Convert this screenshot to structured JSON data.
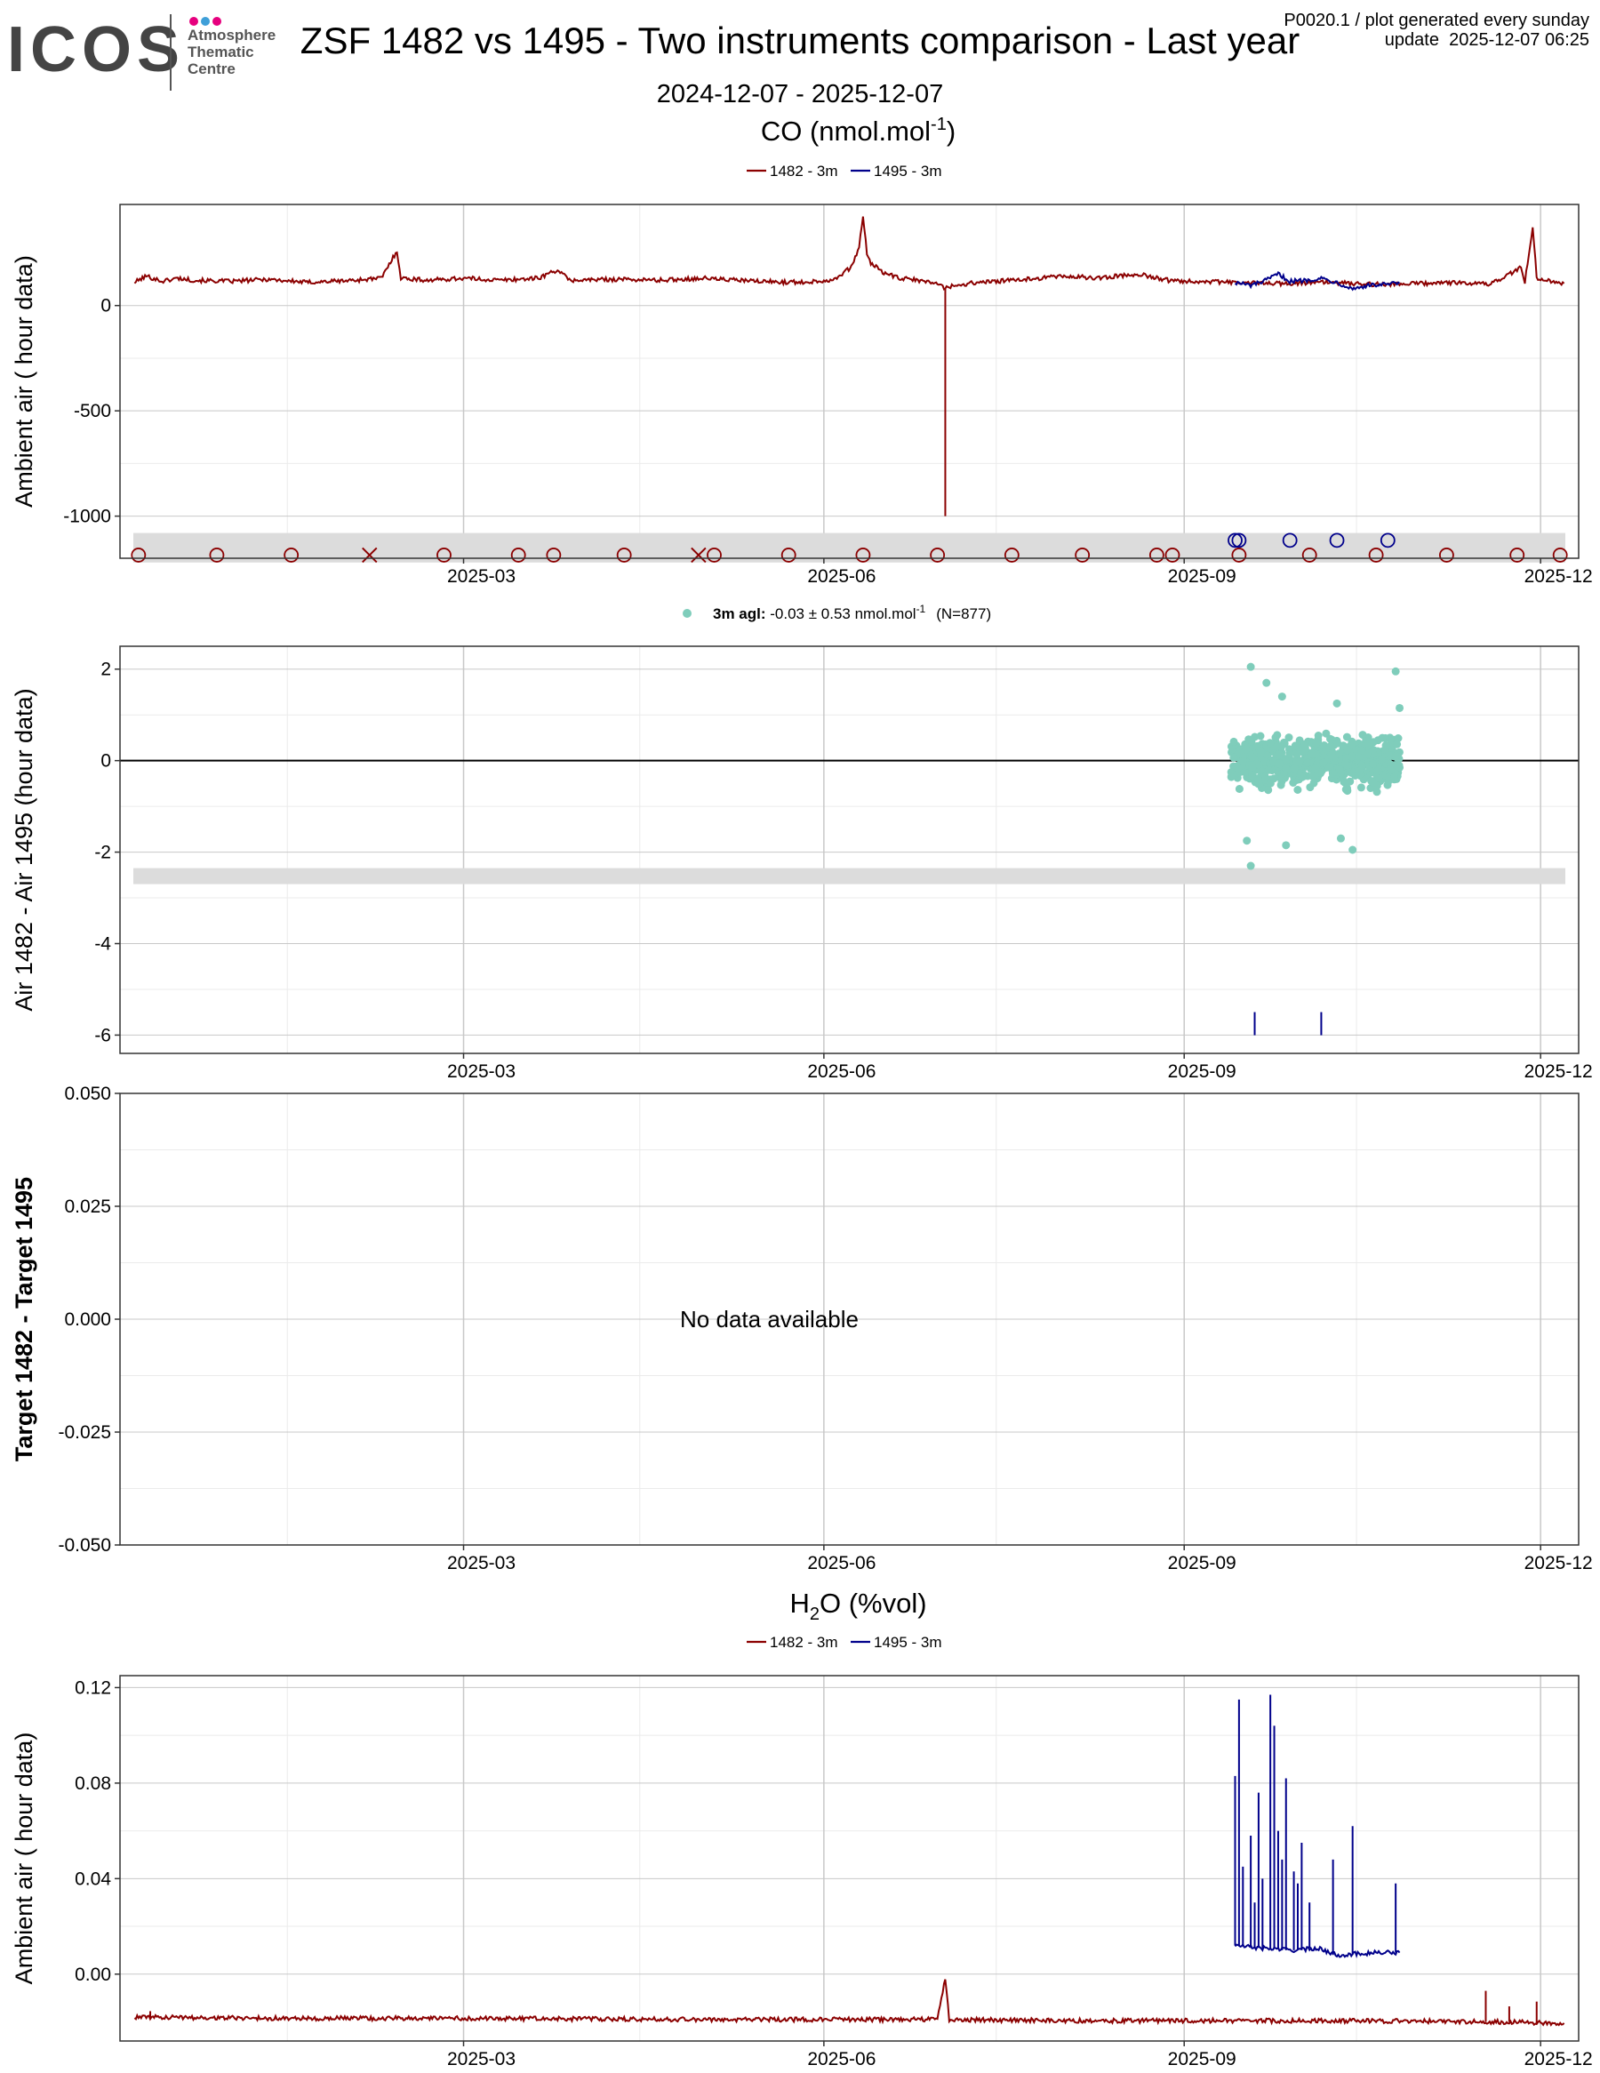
{
  "logo": {
    "wordmark": "ICOS",
    "text_lines": [
      "Atmosphere",
      "Thematic",
      "Centre"
    ],
    "dot_colors": [
      "#e6007e",
      "#3f9fd8",
      "#e6007e"
    ]
  },
  "header": {
    "title": "ZSF 1482 vs 1495 - Two instruments comparison - Last year",
    "info_line1": "P0020.1 / plot generated every sunday",
    "info_line2": "update  2025-12-07 06:25",
    "date_range": "2024-12-07 - 2025-12-07"
  },
  "colors": {
    "series_1482": "#8b0000",
    "series_1495": "#00008b",
    "diff_points": "#7fcdbb",
    "grid_major": "#c8c8c8",
    "grid_minor": "#ebebeb",
    "flag_band": "#dcdcdc"
  },
  "chart_data": [
    {
      "id": "co-ambient",
      "type": "line",
      "section_title": "CO (nmol.mol",
      "section_title_sup": "-1",
      "section_title_end": ")",
      "legend": [
        {
          "name": "1482 - 3m",
          "color": "#8b0000"
        },
        {
          "name": "1495 - 3m",
          "color": "#00008b"
        }
      ],
      "ylabel": "Ambient air ( hour data)",
      "ylim": [
        -1200,
        480
      ],
      "yticks": [
        0,
        -500,
        -1000
      ],
      "ytick_labels": [
        "0",
        "-500",
        "-1000"
      ],
      "xlim": [
        "2024-12-07",
        "2025-12-07"
      ],
      "xticks": [
        "2025-03-01",
        "2025-06-01",
        "2025-09-01",
        "2025-12-01"
      ],
      "xtick_labels": [
        "2025-03",
        "2025-06",
        "2025-09",
        "2025-12"
      ],
      "grid": true,
      "flag_band": [
        -1220,
        -1080
      ],
      "series": [
        {
          "name": "1482 - 3m",
          "color": "#8b0000",
          "points": [
            [
              "2024-12-07",
              110
            ],
            [
              "2024-12-10",
              140
            ],
            [
              "2024-12-14",
              115
            ],
            [
              "2024-12-18",
              130
            ],
            [
              "2024-12-22",
              120
            ],
            [
              "2025-01-01",
              115
            ],
            [
              "2025-01-10",
              125
            ],
            [
              "2025-01-20",
              110
            ],
            [
              "2025-02-01",
              120
            ],
            [
              "2025-02-08",
              130
            ],
            [
              "2025-02-12",
              260
            ],
            [
              "2025-02-13",
              130
            ],
            [
              "2025-02-20",
              120
            ],
            [
              "2025-03-01",
              130
            ],
            [
              "2025-03-10",
              120
            ],
            [
              "2025-03-20",
              130
            ],
            [
              "2025-03-25",
              170
            ],
            [
              "2025-03-28",
              120
            ],
            [
              "2025-04-10",
              125
            ],
            [
              "2025-04-20",
              120
            ],
            [
              "2025-05-01",
              130
            ],
            [
              "2025-05-15",
              115
            ],
            [
              "2025-05-25",
              110
            ],
            [
              "2025-06-03",
              120
            ],
            [
              "2025-06-08",
              180
            ],
            [
              "2025-06-10",
              280
            ],
            [
              "2025-06-11",
              420
            ],
            [
              "2025-06-12",
              250
            ],
            [
              "2025-06-13",
              200
            ],
            [
              "2025-06-16",
              160
            ],
            [
              "2025-06-20",
              130
            ],
            [
              "2025-06-25",
              120
            ],
            [
              "2025-07-01",
              100
            ],
            [
              "2025-07-02",
              80
            ],
            [
              "2025-07-03",
              90
            ],
            [
              "2025-07-10",
              110
            ],
            [
              "2025-07-20",
              120
            ],
            [
              "2025-08-01",
              140
            ],
            [
              "2025-08-10",
              130
            ],
            [
              "2025-08-20",
              150
            ],
            [
              "2025-08-28",
              120
            ],
            [
              "2025-09-05",
              115
            ],
            [
              "2025-09-12",
              110
            ],
            [
              "2025-09-25",
              105
            ],
            [
              "2025-10-08",
              110
            ],
            [
              "2025-10-20",
              100
            ],
            [
              "2025-11-01",
              105
            ],
            [
              "2025-11-10",
              110
            ],
            [
              "2025-11-18",
              100
            ],
            [
              "2025-11-22",
              140
            ],
            [
              "2025-11-26",
              180
            ],
            [
              "2025-11-27",
              110
            ],
            [
              "2025-11-29",
              380
            ],
            [
              "2025-11-30",
              130
            ],
            [
              "2025-12-07",
              105
            ]
          ],
          "spikes": [
            [
              "2025-07-02",
              -1000
            ]
          ]
        },
        {
          "name": "1495 - 3m",
          "color": "#00008b",
          "points": [
            [
              "2025-09-14",
              110
            ],
            [
              "2025-09-18",
              95
            ],
            [
              "2025-09-22",
              120
            ],
            [
              "2025-09-25",
              150
            ],
            [
              "2025-09-28",
              115
            ],
            [
              "2025-10-02",
              120
            ],
            [
              "2025-10-06",
              130
            ],
            [
              "2025-10-10",
              110
            ],
            [
              "2025-10-14",
              80
            ],
            [
              "2025-10-18",
              95
            ],
            [
              "2025-10-22",
              100
            ],
            [
              "2025-10-26",
              105
            ]
          ]
        }
      ],
      "flags": [
        {
          "date": "2024-12-08",
          "y": -1185,
          "marker": "circle",
          "series": "1482 - 3m"
        },
        {
          "date": "2024-12-28",
          "y": -1185,
          "marker": "circle",
          "series": "1482 - 3m"
        },
        {
          "date": "2025-01-16",
          "y": -1185,
          "marker": "circle",
          "series": "1482 - 3m"
        },
        {
          "date": "2025-02-05",
          "y": -1185,
          "marker": "x",
          "series": "1482 - 3m"
        },
        {
          "date": "2025-02-24",
          "y": -1185,
          "marker": "circle",
          "series": "1482 - 3m"
        },
        {
          "date": "2025-03-15",
          "y": -1185,
          "marker": "circle",
          "series": "1482 - 3m"
        },
        {
          "date": "2025-03-24",
          "y": -1185,
          "marker": "circle",
          "series": "1482 - 3m"
        },
        {
          "date": "2025-04-11",
          "y": -1185,
          "marker": "circle",
          "series": "1482 - 3m"
        },
        {
          "date": "2025-04-30",
          "y": -1185,
          "marker": "x",
          "series": "1482 - 3m"
        },
        {
          "date": "2025-05-04",
          "y": -1185,
          "marker": "circle",
          "series": "1482 - 3m"
        },
        {
          "date": "2025-05-23",
          "y": -1185,
          "marker": "circle",
          "series": "1482 - 3m"
        },
        {
          "date": "2025-06-11",
          "y": -1185,
          "marker": "circle",
          "series": "1482 - 3m"
        },
        {
          "date": "2025-06-30",
          "y": -1185,
          "marker": "circle",
          "series": "1482 - 3m"
        },
        {
          "date": "2025-07-19",
          "y": -1185,
          "marker": "circle",
          "series": "1482 - 3m"
        },
        {
          "date": "2025-08-06",
          "y": -1185,
          "marker": "circle",
          "series": "1482 - 3m"
        },
        {
          "date": "2025-08-25",
          "y": -1185,
          "marker": "circle",
          "series": "1482 - 3m"
        },
        {
          "date": "2025-08-29",
          "y": -1185,
          "marker": "circle",
          "series": "1482 - 3m"
        },
        {
          "date": "2025-09-15",
          "y": -1185,
          "marker": "circle",
          "series": "1482 - 3m"
        },
        {
          "date": "2025-10-03",
          "y": -1185,
          "marker": "circle",
          "series": "1482 - 3m"
        },
        {
          "date": "2025-10-20",
          "y": -1185,
          "marker": "circle",
          "series": "1482 - 3m"
        },
        {
          "date": "2025-11-07",
          "y": -1185,
          "marker": "circle",
          "series": "1482 - 3m"
        },
        {
          "date": "2025-11-25",
          "y": -1185,
          "marker": "circle",
          "series": "1482 - 3m"
        },
        {
          "date": "2025-12-06",
          "y": -1185,
          "marker": "circle",
          "series": "1482 - 3m"
        },
        {
          "date": "2025-09-14",
          "y": -1115,
          "marker": "circle",
          "series": "1495 - 3m"
        },
        {
          "date": "2025-09-15",
          "y": -1115,
          "marker": "circle",
          "series": "1495 - 3m"
        },
        {
          "date": "2025-09-28",
          "y": -1115,
          "marker": "circle",
          "series": "1495 - 3m"
        },
        {
          "date": "2025-10-10",
          "y": -1115,
          "marker": "circle",
          "series": "1495 - 3m"
        },
        {
          "date": "2025-10-23",
          "y": -1115,
          "marker": "circle",
          "series": "1495 - 3m"
        }
      ]
    },
    {
      "id": "co-diff",
      "type": "scatter",
      "legend_label_bold": "3m agl:",
      "legend_label_rest": " -0.03 ± 0.53 nmol.mol",
      "legend_label_sup": "-1",
      "legend_label_n": "(N=877)",
      "ylabel": "Air 1482 - Air 1495 (hour data)",
      "ylim": [
        -6.4,
        2.5
      ],
      "yticks": [
        2,
        0,
        -2,
        -4,
        -6
      ],
      "ytick_labels": [
        "2",
        "0",
        "-2",
        "-4",
        "-6"
      ],
      "xlim": [
        "2024-12-07",
        "2025-12-07"
      ],
      "xticks": [
        "2025-03-01",
        "2025-06-01",
        "2025-09-01",
        "2025-12-01"
      ],
      "xtick_labels": [
        "2025-03",
        "2025-06",
        "2025-09",
        "2025-12"
      ],
      "grid": true,
      "zero_line": true,
      "flag_band": [
        -2.7,
        -2.35
      ],
      "cluster": {
        "date_start": "2025-09-13",
        "date_end": "2025-10-26",
        "mean": -0.03,
        "sd": 0.53,
        "n": 877
      },
      "outliers": [
        [
          "2025-09-18",
          2.05
        ],
        [
          "2025-09-22",
          1.7
        ],
        [
          "2025-09-26",
          1.4
        ],
        [
          "2025-10-10",
          1.25
        ],
        [
          "2025-10-25",
          1.95
        ],
        [
          "2025-10-26",
          1.15
        ],
        [
          "2025-09-17",
          -1.75
        ],
        [
          "2025-09-18",
          -2.3
        ],
        [
          "2025-09-27",
          -1.85
        ],
        [
          "2025-10-14",
          -1.95
        ],
        [
          "2025-10-11",
          -1.7
        ]
      ],
      "markers": [
        {
          "date": "2025-09-19",
          "y": -5.75,
          "color": "#00008b"
        },
        {
          "date": "2025-10-06",
          "y": -5.75,
          "color": "#00008b"
        }
      ]
    },
    {
      "id": "co-target",
      "type": "line",
      "ylabel": "Target 1482 - Target 1495",
      "ylim": [
        -0.05,
        0.05
      ],
      "yticks": [
        0.05,
        0.025,
        0,
        -0.025,
        -0.05
      ],
      "ytick_labels": [
        "0.050",
        "0.025",
        "0.000",
        "-0.025",
        "-0.050"
      ],
      "xlim": [
        "2024-12-07",
        "2025-12-07"
      ],
      "xticks": [
        "2025-03-01",
        "2025-06-01",
        "2025-09-01",
        "2025-12-01"
      ],
      "xtick_labels": [
        "2025-03",
        "2025-06",
        "2025-09",
        "2025-12"
      ],
      "grid": true,
      "empty_message": "No data available",
      "series": []
    },
    {
      "id": "h2o-ambient",
      "type": "line",
      "section_title": "H",
      "section_title_sub": "2",
      "section_title_end": "O (%vol)",
      "legend": [
        {
          "name": "1482 - 3m",
          "color": "#8b0000"
        },
        {
          "name": "1495 - 3m",
          "color": "#00008b"
        }
      ],
      "ylabel": "Ambient air ( hour data)",
      "ylim": [
        -0.028,
        0.125
      ],
      "yticks": [
        0.12,
        0.08,
        0.04,
        0.0
      ],
      "ytick_labels": [
        "0.12",
        "0.08",
        "0.04",
        "0.00"
      ],
      "xlim": [
        "2024-12-07",
        "2025-12-07"
      ],
      "xticks": [
        "2025-03-01",
        "2025-06-01",
        "2025-09-01",
        "2025-12-01"
      ],
      "xtick_labels": [
        "2025-03",
        "2025-06",
        "2025-09",
        "2025-12"
      ],
      "grid": true,
      "series": [
        {
          "name": "1482 - 3m",
          "color": "#8b0000",
          "points": [
            [
              "2024-12-07",
              -0.018
            ],
            [
              "2025-01-15",
              -0.0185
            ],
            [
              "2025-03-01",
              -0.0185
            ],
            [
              "2025-05-01",
              -0.019
            ],
            [
              "2025-06-30",
              -0.019
            ],
            [
              "2025-07-02",
              -0.002
            ],
            [
              "2025-07-03",
              -0.019
            ],
            [
              "2025-08-01",
              -0.0195
            ],
            [
              "2025-09-01",
              -0.0195
            ],
            [
              "2025-10-15",
              -0.0195
            ],
            [
              "2025-11-20",
              -0.02
            ],
            [
              "2025-12-07",
              -0.0205
            ]
          ],
          "spikes": [
            [
              "2025-11-17",
              -0.007
            ],
            [
              "2025-11-23",
              -0.0135
            ],
            [
              "2025-11-30",
              -0.0115
            ],
            [
              "2024-12-11",
              -0.0155
            ]
          ]
        },
        {
          "name": "1495 - 3m",
          "color": "#00008b",
          "points": [
            [
              "2025-09-14",
              0.012
            ],
            [
              "2025-09-20",
              0.011
            ],
            [
              "2025-09-30",
              0.01
            ],
            [
              "2025-10-05",
              0.011
            ],
            [
              "2025-10-10",
              0.008
            ],
            [
              "2025-10-20",
              0.009
            ],
            [
              "2025-10-26",
              0.009
            ]
          ],
          "spikes": [
            [
              "2025-09-14",
              0.083
            ],
            [
              "2025-09-15",
              0.115
            ],
            [
              "2025-09-16",
              0.045
            ],
            [
              "2025-09-18",
              0.058
            ],
            [
              "2025-09-19",
              0.03
            ],
            [
              "2025-09-20",
              0.076
            ],
            [
              "2025-09-21",
              0.04
            ],
            [
              "2025-09-23",
              0.117
            ],
            [
              "2025-09-24",
              0.104
            ],
            [
              "2025-09-25",
              0.06
            ],
            [
              "2025-09-26",
              0.048
            ],
            [
              "2025-09-27",
              0.082
            ],
            [
              "2025-09-29",
              0.043
            ],
            [
              "2025-09-30",
              0.038
            ],
            [
              "2025-10-01",
              0.055
            ],
            [
              "2025-10-03",
              0.03
            ],
            [
              "2025-10-09",
              0.048
            ],
            [
              "2025-10-14",
              0.062
            ],
            [
              "2025-10-25",
              0.038
            ]
          ]
        }
      ]
    }
  ]
}
